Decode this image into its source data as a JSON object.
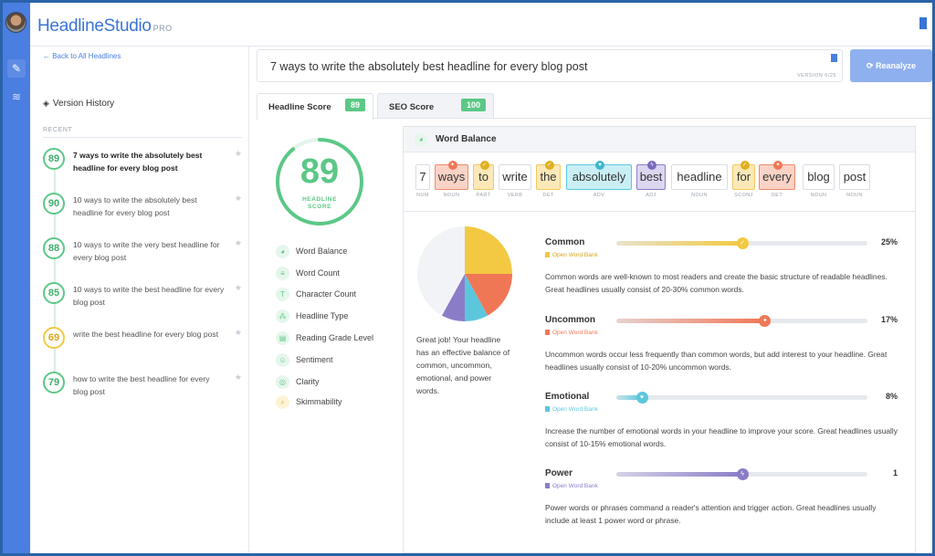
{
  "app": {
    "logo_main": "HeadlineStudio",
    "logo_tag": "PRO"
  },
  "sidebar": {
    "back_link": "← Back to All Headlines",
    "version_history_title": "Version History",
    "recent_label": "RECENT",
    "versions": [
      {
        "score": "89",
        "text": "7 ways to write the absolutely best headline for every blog post",
        "color": "green",
        "active": true
      },
      {
        "score": "90",
        "text": "10 ways to write the absolutely best headline for every blog post",
        "color": "green",
        "active": false
      },
      {
        "score": "88",
        "text": "10 ways to write the very best headline for every blog post",
        "color": "green",
        "active": false
      },
      {
        "score": "85",
        "text": "10 ways to write the best headline for every blog post",
        "color": "green",
        "active": false
      },
      {
        "score": "69",
        "text": "write the best headline for every blog post",
        "color": "yellow",
        "active": false
      },
      {
        "score": "79",
        "text": "how to write the best headline for every blog post",
        "color": "green",
        "active": false
      }
    ]
  },
  "headline": {
    "text": "7 ways to write the absolutely best headline for every blog post",
    "version": "VERSION 6/25",
    "reanalyze_label": "Reanalyze"
  },
  "tabs": {
    "headline_score_label": "Headline Score",
    "headline_score_value": "89",
    "seo_score_label": "SEO Score",
    "seo_score_value": "100"
  },
  "score": {
    "value": "89",
    "label_line1": "HEADLINE",
    "label_line2": "SCORE",
    "fraction": 0.89,
    "color": "#5bc886"
  },
  "menu": [
    {
      "label": "Word Balance",
      "icon": "pie-chart-icon"
    },
    {
      "label": "Word Count",
      "icon": "lines-icon"
    },
    {
      "label": "Character Count",
      "icon": "text-t-icon"
    },
    {
      "label": "Headline Type",
      "icon": "nodes-icon"
    },
    {
      "label": "Reading Grade Level",
      "icon": "book-icon"
    },
    {
      "label": "Sentiment",
      "icon": "smile-icon"
    },
    {
      "label": "Clarity",
      "icon": "target-icon"
    },
    {
      "label": "Skimmability",
      "icon": "magnifier-icon"
    }
  ],
  "word_balance": {
    "title": "Word Balance",
    "words": [
      {
        "word": "7",
        "pos": "NUM",
        "type": "none"
      },
      {
        "word": "ways",
        "pos": "NOUN",
        "type": "uncommon"
      },
      {
        "word": "to",
        "pos": "PART",
        "type": "common"
      },
      {
        "word": "write",
        "pos": "VERB",
        "type": "none"
      },
      {
        "word": "the",
        "pos": "DET",
        "type": "common"
      },
      {
        "word": "absolutely",
        "pos": "ADV",
        "type": "emotional"
      },
      {
        "word": "best",
        "pos": "ADJ",
        "type": "power"
      },
      {
        "word": "headline",
        "pos": "NOUN",
        "type": "none"
      },
      {
        "word": "for",
        "pos": "SCONJ",
        "type": "common"
      },
      {
        "word": "every",
        "pos": "DET",
        "type": "uncommon"
      },
      {
        "word": "blog",
        "pos": "NOUN",
        "type": "none"
      },
      {
        "word": "post",
        "pos": "NOUN",
        "type": "none"
      }
    ],
    "summary": "Great job! Your headline has an effective balance of common, uncommon, emotional, and power words.",
    "categories": [
      {
        "name": "Common",
        "link": "Open Word Bank",
        "percent": "25%",
        "level": 0.5,
        "color": "#f3c943",
        "description": "Common words are well-known to most readers and create the basic structure of readable headlines. Great headlines usually consist of 20-30% common words."
      },
      {
        "name": "Uncommon",
        "link": "Open Word Bank",
        "percent": "17%",
        "level": 0.59,
        "color": "#f07756",
        "description": "Uncommon words occur less frequently than common words, but add interest to your headline. Great headlines usually consist of 10-20% uncommon words."
      },
      {
        "name": "Emotional",
        "link": "Open Word Bank",
        "percent": "8%",
        "level": 0.1,
        "color": "#5cc7dc",
        "description": "Increase the number of emotional words in your headline to improve your score. Great headlines usually consist of 10-15% emotional words."
      },
      {
        "name": "Power",
        "link": "Open Word Bank",
        "percent": "1",
        "level": 0.5,
        "color": "#8b7cc8",
        "description": "Power words or phrases command a reader's attention and trigger action. Great headlines usually include at least 1 power word or phrase."
      }
    ],
    "pie": [
      {
        "name": "Common",
        "value": 25,
        "color": "#f3c943"
      },
      {
        "name": "Uncommon",
        "value": 17,
        "color": "#f07756"
      },
      {
        "name": "Emotional",
        "value": 8,
        "color": "#5cc7dc"
      },
      {
        "name": "Power",
        "value": 8,
        "color": "#8b7cc8"
      },
      {
        "name": "Other",
        "value": 42,
        "color": "#f1f3f7"
      }
    ]
  }
}
